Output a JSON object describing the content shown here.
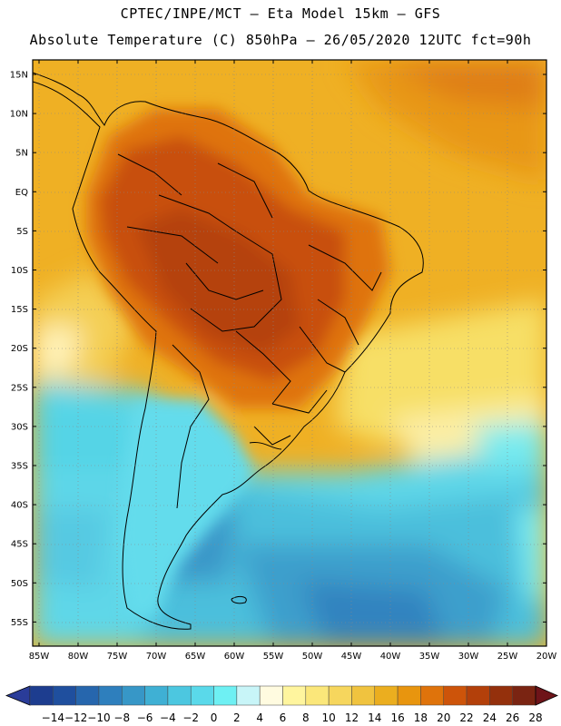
{
  "header": {
    "line1": "CPTEC/INPE/MCT –  Eta Model 15km – GFS",
    "line2": "Absolute Temperature (C) 850hPa – 26/05/2020 12UTC fct=90h"
  },
  "map": {
    "lat_labels": [
      "15N",
      "10N",
      "5N",
      "EQ",
      "5S",
      "10S",
      "15S",
      "20S",
      "25S",
      "30S",
      "35S",
      "40S",
      "45S",
      "50S",
      "55S"
    ],
    "lon_labels": [
      "85W",
      "80W",
      "75W",
      "70W",
      "65W",
      "60W",
      "55W",
      "50W",
      "45W",
      "40W",
      "35W",
      "30W",
      "25W",
      "20W"
    ]
  },
  "colorbar": {
    "labels": [
      "-14",
      "-12",
      "-10",
      "-8",
      "-6",
      "-4",
      "-2",
      "0",
      "2",
      "4",
      "6",
      "8",
      "10",
      "12",
      "14",
      "16",
      "18",
      "20",
      "22",
      "24",
      "26",
      "28"
    ],
    "colors": [
      "#1d3d8f",
      "#1f4f9e",
      "#2666ad",
      "#2e7fbd",
      "#3797c7",
      "#3fb0d4",
      "#4cc7e0",
      "#5ad9ea",
      "#6ef0f3",
      "#c8f5f8",
      "#fffbe0",
      "#fff59e",
      "#fbe77a",
      "#f6d65d",
      "#f0c33f",
      "#ebae1f",
      "#e8950e",
      "#df730b",
      "#cd540a",
      "#b3400a",
      "#94300c",
      "#7a2412"
    ],
    "low_color": "#2a3c99",
    "high_color": "#6e1419"
  }
}
